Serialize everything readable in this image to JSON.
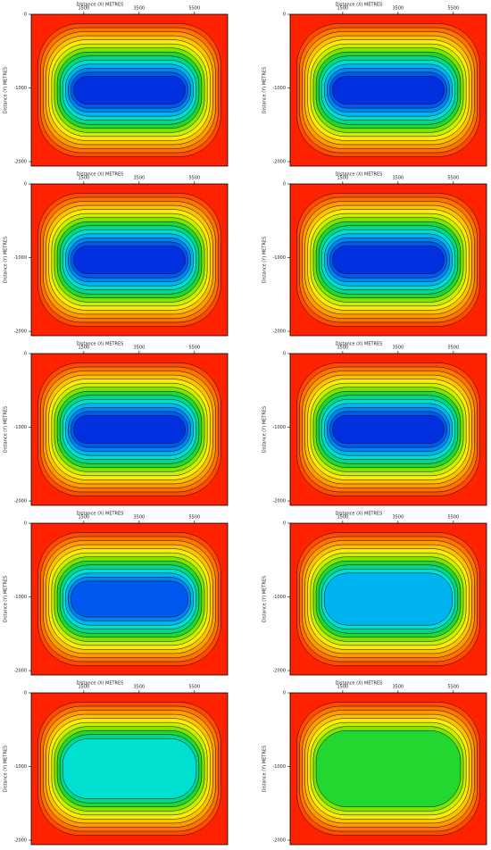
{
  "chart_data": [
    {
      "type": "contour",
      "x_label": "Distance (X) METRES",
      "y_label": "Distance (Y) METRES",
      "xlim": [
        -400,
        6700
      ],
      "ylim": [
        -2060,
        0
      ],
      "xticks": [
        1500,
        3500,
        5500
      ],
      "yticks": [
        0,
        -1000,
        -2000
      ]
    },
    {
      "type": "contour",
      "x_label": "Distance (X) METRES",
      "y_label": "Distance (Y) METRES",
      "xlim": [
        -400,
        6700
      ],
      "ylim": [
        -2060,
        0
      ],
      "xticks": [
        1500,
        3500,
        5500
      ],
      "yticks": [
        0,
        -1000,
        -2000
      ]
    },
    {
      "type": "contour",
      "x_label": "Distance (X) METRES",
      "y_label": "Distance (Y) METRES",
      "xlim": [
        -400,
        6700
      ],
      "ylim": [
        -2060,
        0
      ],
      "xticks": [
        1500,
        3500,
        5500
      ],
      "yticks": [
        0,
        -1000,
        -2000
      ]
    },
    {
      "type": "contour",
      "x_label": "Distance (X) METRES",
      "y_label": "Distance (Y) METRES",
      "xlim": [
        -400,
        6700
      ],
      "ylim": [
        -2060,
        0
      ],
      "xticks": [
        1500,
        3500,
        5500
      ],
      "yticks": [
        0,
        -1000,
        -2000
      ]
    },
    {
      "type": "contour",
      "x_label": "Distance (X) METRES",
      "y_label": "Distance (Y) METRES",
      "xlim": [
        -400,
        6700
      ],
      "ylim": [
        -2060,
        0
      ],
      "xticks": [
        1500,
        3500,
        5500
      ],
      "yticks": [
        0,
        -1000,
        -2000
      ]
    },
    {
      "type": "contour",
      "x_label": "Distance (X) METRES",
      "y_label": "Distance (Y) METRES",
      "xlim": [
        -400,
        6700
      ],
      "ylim": [
        -2060,
        0
      ],
      "xticks": [
        1500,
        3500,
        5500
      ],
      "yticks": [
        0,
        -1000,
        -2000
      ]
    },
    {
      "type": "contour",
      "x_label": "Distance (X) METRES",
      "y_label": "Distance (Y) METRES",
      "xlim": [
        -400,
        6700
      ],
      "ylim": [
        -2060,
        0
      ],
      "xticks": [
        1500,
        3500,
        5500
      ],
      "yticks": [
        0,
        -1000,
        -2000
      ]
    },
    {
      "type": "contour",
      "x_label": "Distance (X) METRES",
      "y_label": "Distance (Y) METRES",
      "xlim": [
        -400,
        6700
      ],
      "ylim": [
        -2060,
        0
      ],
      "xticks": [
        1500,
        3500,
        5500
      ],
      "yticks": [
        0,
        -1000,
        -2000
      ]
    },
    {
      "type": "contour",
      "x_label": "Distance (X) METRES",
      "y_label": "Distance (Y) METRES",
      "xlim": [
        -400,
        6700
      ],
      "ylim": [
        -2060,
        0
      ],
      "xticks": [
        1500,
        3500,
        5500
      ],
      "yticks": [
        0,
        -1000,
        -2000
      ]
    },
    {
      "type": "contour",
      "x_label": "Distance (X) METRES",
      "y_label": "Distance (Y) METRES",
      "xlim": [
        -400,
        6700
      ],
      "ylim": [
        -2060,
        0
      ],
      "xticks": [
        1500,
        3500,
        5500
      ],
      "yticks": [
        0,
        -1000,
        -2000
      ]
    }
  ]
}
